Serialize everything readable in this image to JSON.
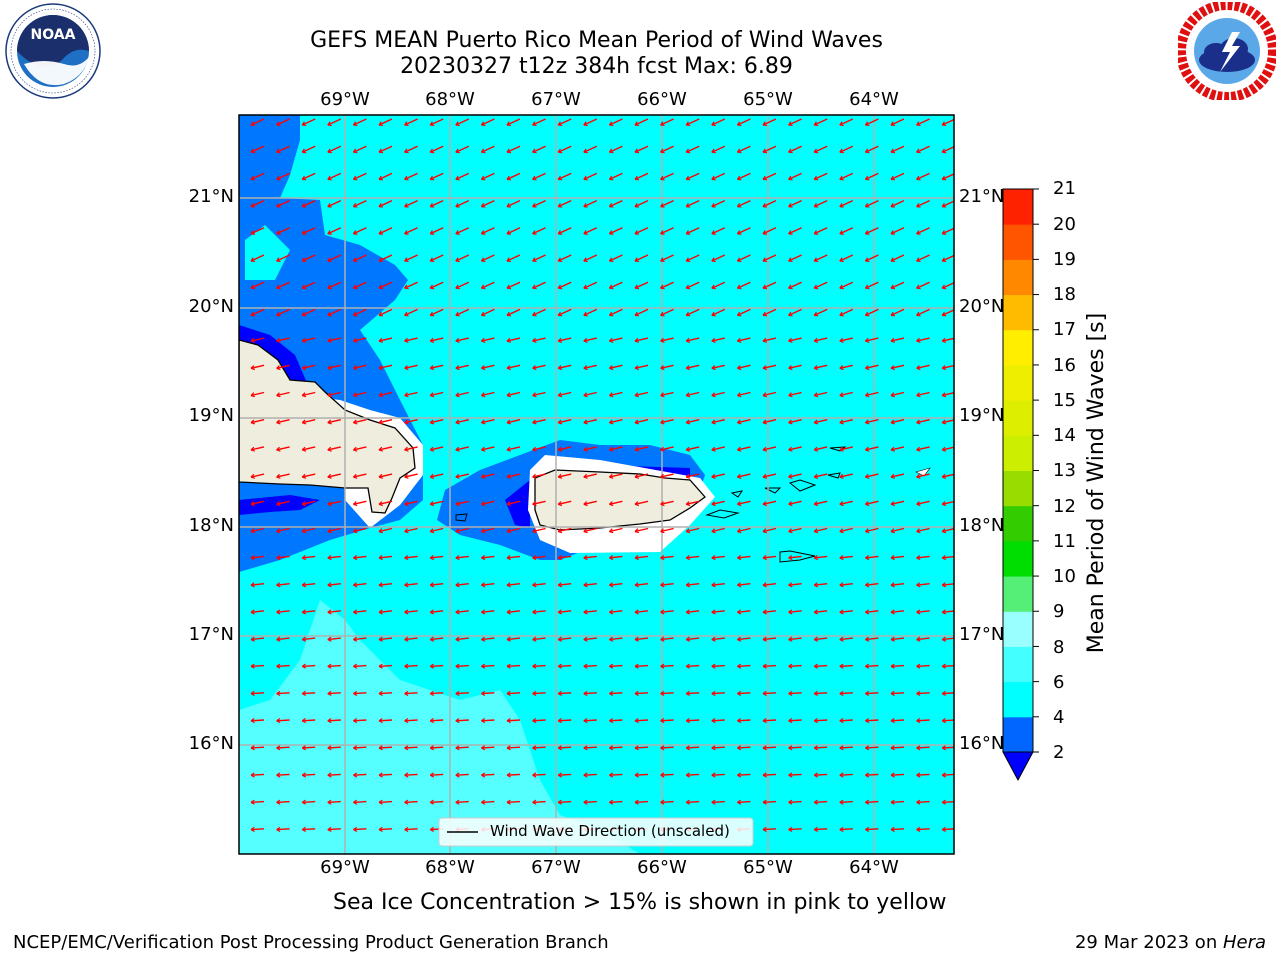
{
  "header": {
    "title_line1": "GEFS MEAN Puerto Rico Mean Period of Wind Waves",
    "title_line2": "20230327 t12z 384h fcst   Max: 6.89"
  },
  "logos": {
    "left": {
      "text": "NOAA",
      "ring_text": "NATIONAL OCEANIC AND ATMOSPHERIC ADMINISTRATION · U.S. DEPARTMENT OF COMMERCE"
    },
    "right": {
      "ring_text": "NATIONAL WEATHER SERVICE"
    }
  },
  "map": {
    "lon_labels": [
      "69°W",
      "68°W",
      "67°W",
      "66°W",
      "65°W",
      "64°W"
    ],
    "lat_labels": [
      "21°N",
      "20°N",
      "19°N",
      "18°N",
      "17°N",
      "16°N"
    ],
    "legend_label": "Wind Wave Direction (unscaled)",
    "arrow_color": "#ff0000",
    "ocean_color": "#00ffff",
    "land_color": "#efedde"
  },
  "colorbar": {
    "label": "Mean Period of Wind Waves [s]",
    "ticks": [
      "2",
      "4",
      "6",
      "8",
      "9",
      "10",
      "11",
      "12",
      "13",
      "14",
      "15",
      "16",
      "17",
      "18",
      "19",
      "20",
      "21"
    ],
    "colors": [
      "#0066ff",
      "#00ffff",
      "#44ffff",
      "#99ffff",
      "#55ee77",
      "#00dd00",
      "#33cc00",
      "#99dd00",
      "#ccee00",
      "#ddee00",
      "#eeee00",
      "#ffee00",
      "#ffbb00",
      "#ff8800",
      "#ff5500",
      "#ff2200",
      "#ff0000"
    ],
    "under_color": "#0000ff"
  },
  "footer": {
    "caption": "Sea Ice Concentration > 15% is shown in pink to yellow",
    "left": "NCEP/EMC/Verification Post Processing Product Generation Branch",
    "right_date": "29 Mar 2023 on ",
    "right_host": "Hera"
  }
}
